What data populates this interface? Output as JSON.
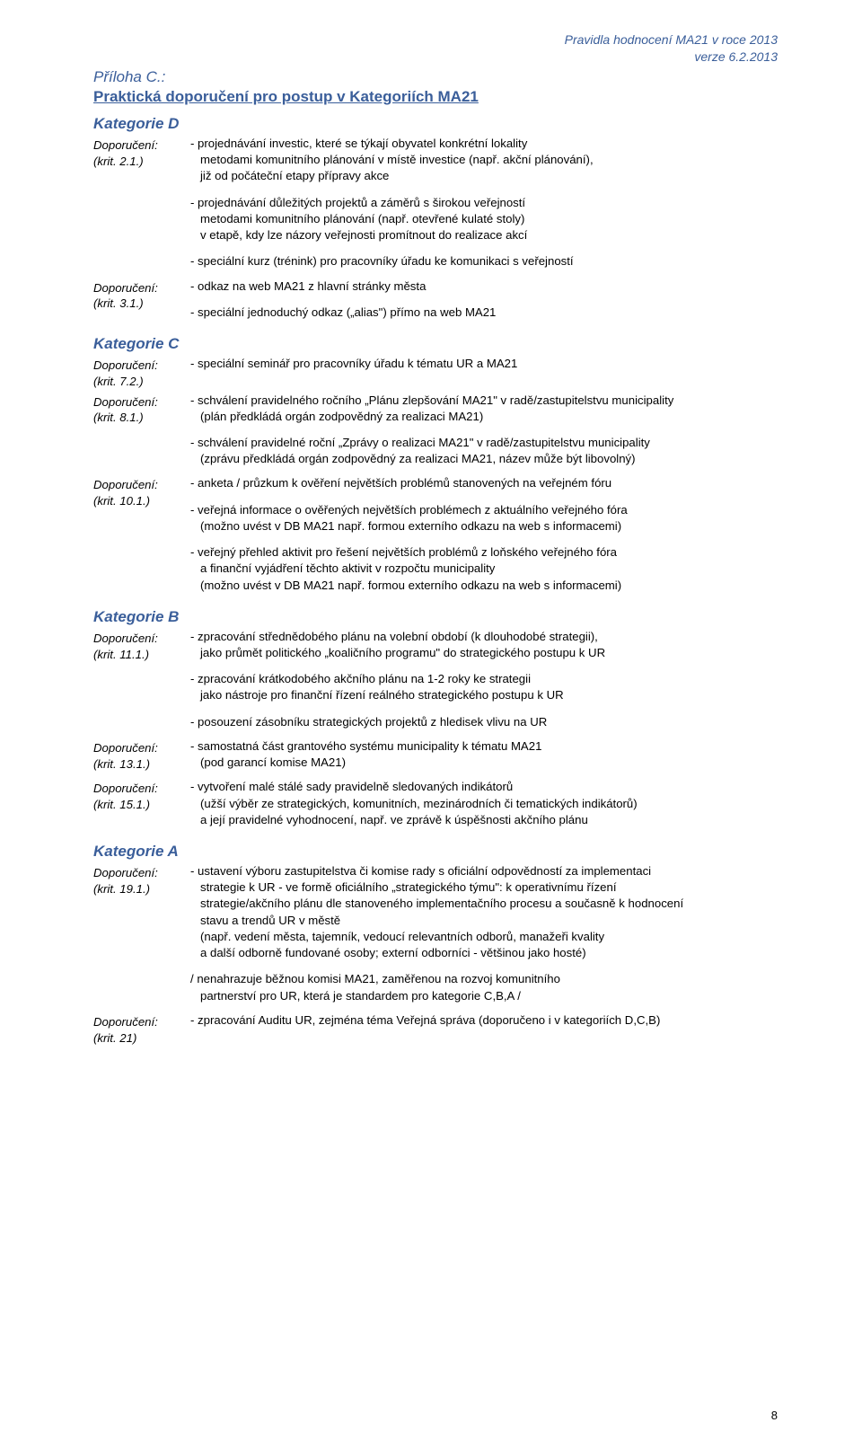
{
  "header": {
    "line1": "Pravidla hodnocení MA21 v roce 2013",
    "line2": "verze 6.2.2013"
  },
  "appendix": "Příloha C.:",
  "main_title": "Praktická doporučení pro postup v Kategoriích MA21",
  "page_number": "8",
  "categories": [
    {
      "title": "Kategorie D",
      "items": [
        {
          "label": "Doporučení:",
          "krit": "(krit. 2.1.)",
          "paras": [
            "- projednávání investic, které se týkají obyvatel konkrétní lokality\n  metodami komunitního plánování v místě investice (např. akční plánování),\n  již od počáteční etapy přípravy akce",
            "- projednávání důležitých projektů a záměrů s širokou veřejností\n  metodami komunitního plánování (např. otevřené kulaté stoly)\n  v etapě, kdy lze názory veřejnosti promítnout do realizace akcí",
            "- speciální kurz (trénink) pro pracovníky úřadu ke komunikaci s veřejností"
          ]
        },
        {
          "label": "Doporučení:",
          "krit": "(krit. 3.1.)",
          "paras": [
            "- odkaz na web MA21 z hlavní stránky města",
            "- speciální jednoduchý odkaz („alias\") přímo na web MA21"
          ]
        }
      ]
    },
    {
      "title": "Kategorie C",
      "items": [
        {
          "label": "Doporučení:",
          "krit": "(krit. 7.2.)",
          "paras": [
            "- speciální seminář pro pracovníky úřadu k tématu UR a MA21"
          ]
        },
        {
          "label": "Doporučení:",
          "krit": "(krit. 8.1.)",
          "paras": [
            "- schválení pravidelného ročního „Plánu zlepšování MA21\" v radě/zastupitelstvu municipality\n  (plán předkládá orgán zodpovědný za realizaci MA21)",
            "- schválení pravidelné roční „Zprávy o realizaci MA21\" v radě/zastupitelstvu municipality\n  (zprávu předkládá orgán zodpovědný za realizaci MA21, název může být libovolný)"
          ]
        },
        {
          "label": "Doporučení:",
          "krit": "(krit. 10.1.)",
          "paras": [
            "- anketa / průzkum k ověření největších problémů stanovených na veřejném fóru",
            "- veřejná informace o ověřených největších problémech z aktuálního veřejného fóra\n  (možno uvést v DB MA21 např. formou externího odkazu na web s informacemi)",
            "- veřejný přehled aktivit pro řešení největších problémů z loňského veřejného fóra\n  a finanční vyjádření těchto aktivit v rozpočtu municipality\n  (možno uvést v DB MA21 např. formou externího odkazu na web s informacemi)"
          ]
        }
      ]
    },
    {
      "title": "Kategorie B",
      "items": [
        {
          "label": "Doporučení:",
          "krit": "(krit. 11.1.)",
          "paras": [
            "- zpracování střednědobého plánu na volební období (k dlouhodobé strategii),\n  jako průmět politického „koaličního programu\" do strategického postupu k UR",
            "- zpracování krátkodobého akčního plánu na 1-2 roky ke strategii\n  jako nástroje pro finanční řízení reálného strategického postupu k UR",
            "- posouzení zásobníku strategických projektů z hledisek vlivu na UR"
          ]
        },
        {
          "label": "Doporučení:",
          "krit": "(krit. 13.1.)",
          "paras": [
            "- samostatná část grantového systému municipality k tématu MA21\n  (pod garancí komise MA21)"
          ]
        },
        {
          "label": "Doporučení:",
          "krit": "(krit. 15.1.)",
          "paras": [
            "- vytvoření malé stálé sady pravidelně sledovaných indikátorů\n  (užší výběr ze strategických, komunitních, mezinárodních či tematických indikátorů)\n  a její pravidelné vyhodnocení, např. ve zprávě k úspěšnosti akčního plánu"
          ]
        }
      ]
    },
    {
      "title": "Kategorie A",
      "items": [
        {
          "label": "Doporučení:",
          "krit": "(krit. 19.1.)",
          "paras": [
            "- ustavení výboru zastupitelstva či komise rady s oficiální odpovědností za implementaci\n  strategie k UR - ve formě oficiálního „strategického týmu\": k operativnímu řízení\n  strategie/akčního plánu dle stanoveného implementačního procesu a současně k hodnocení\n  stavu a trendů UR v městě\n  (např. vedení města, tajemník, vedoucí relevantních odborů, manažeři kvality\n  a další odborně fundované osoby; externí odborníci - většinou jako hosté)",
            "/ nenahrazuje běžnou komisi MA21, zaměřenou na rozvoj komunitního\n  partnerství pro UR, která je standardem pro kategorie C,B,A /"
          ]
        },
        {
          "label": "Doporučení:",
          "krit": "(krit. 21)",
          "paras": [
            "- zpracování Auditu UR, zejména téma Veřejná správa (doporučeno i v kategoriích D,C,B)"
          ]
        }
      ]
    }
  ]
}
